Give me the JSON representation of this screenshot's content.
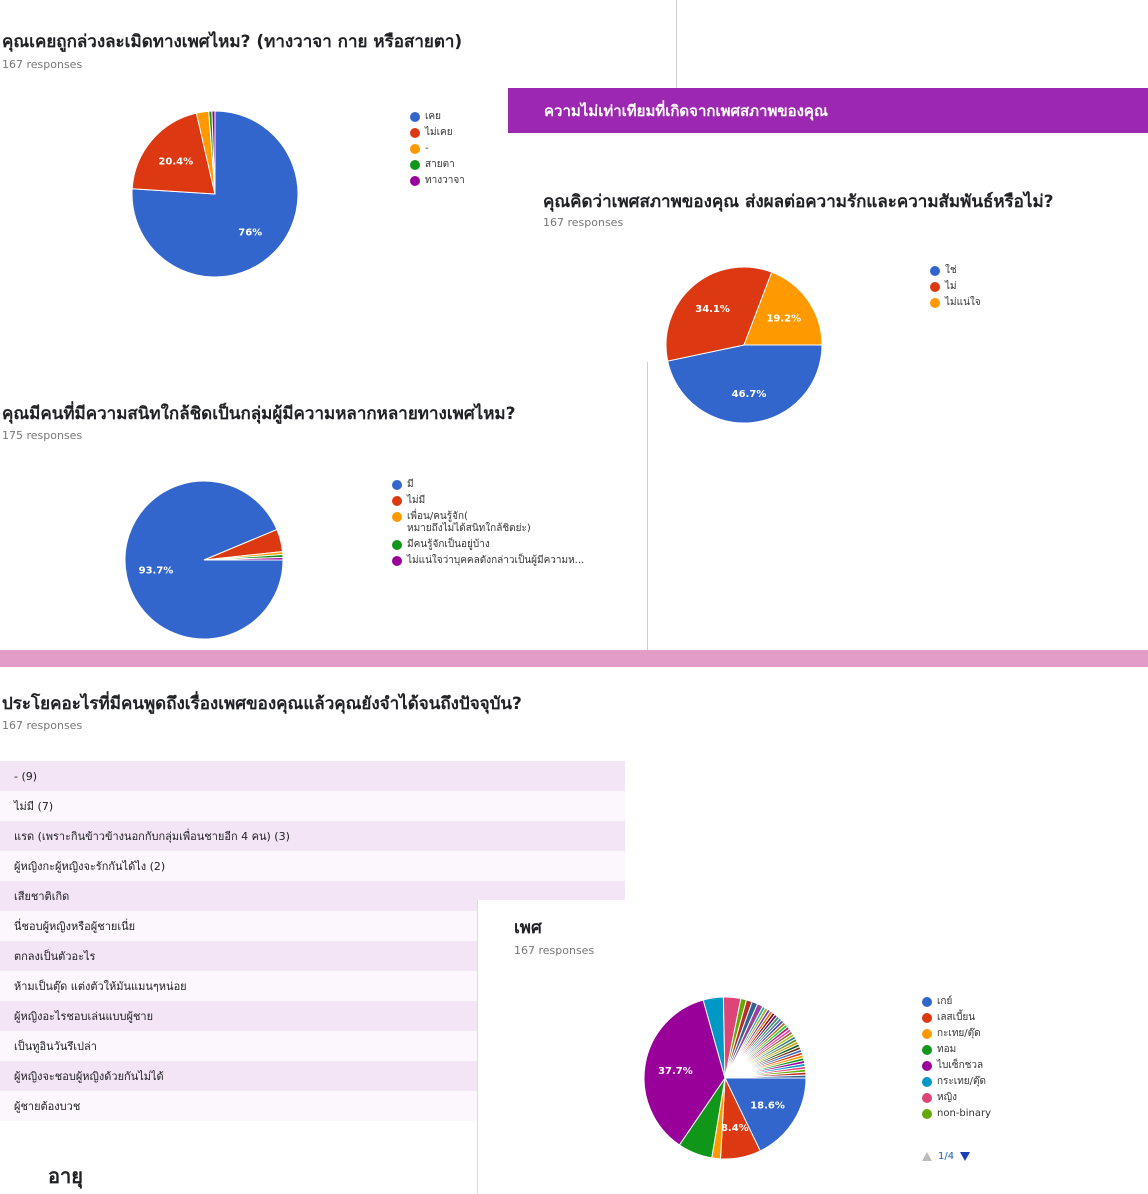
{
  "q1": {
    "title": "คุณเคยถูกล่วงละเมิดทางเพศไหม? (ทางวาจา กาย หรือสายตา)",
    "responses": "167 responses",
    "legend": [
      {
        "label": "เคย",
        "color": "#3366cc"
      },
      {
        "label": "ไม่เคย",
        "color": "#dc3912"
      },
      {
        "label": "-",
        "color": "#ff9900"
      },
      {
        "label": "สายตา",
        "color": "#109618"
      },
      {
        "label": "ทางวาจา",
        "color": "#990099"
      }
    ]
  },
  "section_band": {
    "title": "ความไม่เท่าเทียมที่เกิดจากเพศสภาพของคุณ"
  },
  "q2": {
    "title": "คุณคิดว่าเพศสภาพของคุณ ส่งผลต่อความรักและความสัมพันธ์หรือไม่?",
    "responses": "167 responses",
    "legend": [
      {
        "label": "ใช่",
        "color": "#3366cc"
      },
      {
        "label": "ไม่",
        "color": "#dc3912"
      },
      {
        "label": "ไม่แน่ใจ",
        "color": "#ff9900"
      }
    ]
  },
  "q3": {
    "title": "คุณมีคนที่มีความสนิทใกล้ชิดเป็นกลุ่มผู้มีความหลากหลายทางเพศไหม?",
    "responses": "175 responses",
    "legend": [
      {
        "label": "มี",
        "color": "#3366cc"
      },
      {
        "label": "ไม่มี",
        "color": "#dc3912"
      },
      {
        "label": "เพื่อน/คนรู้จัก(\nหมายถึงไม่ได้สนิทใกล้ชิดย่ะ)",
        "color": "#ff9900"
      },
      {
        "label": "มีคนรู้จักเป็นอยู่บ้าง",
        "color": "#109618"
      },
      {
        "label": "ไม่แน่ใจว่าบุคคลดังกล่าวเป็นผู้มีความห...",
        "color": "#990099"
      }
    ]
  },
  "q4": {
    "title": "ประโยคอะไรที่มีคนพูดถึงเรื่องเพศของคุณแล้วคุณยังจำได้จนถึงปัจจุบัน?",
    "responses": "167 responses",
    "rows": [
      "- (9)",
      "ไม่มี (7)",
      "แรด (เพราะกินข้าวข้างนอกกับกลุ่มเพื่อนชายอีก 4 คน) (3)",
      "ผู้หญิงกะผู้หญิงจะรักกันได้ไง (2)",
      "เสียชาติเกิด",
      "นี่ชอบผู้หญิงหรือผู้ชายเนี่ย",
      "ตกลงเป็นตัวอะไร",
      "ห้ามเป็นตุ๊ด แต่งตัวให้มันแมนๆหน่อย",
      "ผู้หญิงอะไรชอบเล่นแบบผู้ชาย",
      "เป็นทูอินวันรึเปล่า",
      "ผู้หญิงจะชอบผู้หญิงด้วยกันไม่ได้",
      "ผู้ชายต้องบวช"
    ]
  },
  "q5": {
    "title": "เพศ",
    "responses": "167 responses",
    "legend": [
      {
        "label": "เกย์",
        "color": "#3366cc"
      },
      {
        "label": "เลสเบี้ยน",
        "color": "#dc3912"
      },
      {
        "label": "กะเทย/ตุ๊ด",
        "color": "#ff9900"
      },
      {
        "label": "ทอม",
        "color": "#109618"
      },
      {
        "label": "ไบเซ็กชวล",
        "color": "#990099"
      },
      {
        "label": "กระเทย/ตุ๊ด",
        "color": "#0099c6"
      },
      {
        "label": "หญิง",
        "color": "#dd4477"
      },
      {
        "label": "non-binary",
        "color": "#66aa00"
      }
    ],
    "pager": "1/4"
  },
  "q6": {
    "title": "อายุ"
  },
  "chart_data": [
    {
      "type": "pie",
      "title": "คุณเคยถูกล่วงละเมิดทางเพศไหม? (ทางวาจา กาย หรือสายตา)",
      "labels": [
        "เคย",
        "ไม่เคย",
        "-",
        "สายตา",
        "ทางวาจา"
      ],
      "values": [
        76.0,
        20.4,
        2.4,
        0.6,
        0.6
      ],
      "colors": [
        "#3366cc",
        "#dc3912",
        "#ff9900",
        "#109618",
        "#990099"
      ],
      "data_labels": [
        "76%",
        "20.4%",
        "",
        "",
        ""
      ]
    },
    {
      "type": "pie",
      "title": "คุณคิดว่าเพศสภาพของคุณ ส่งผลต่อความรักและความสัมพันธ์หรือไม่?",
      "labels": [
        "ใช่",
        "ไม่",
        "ไม่แน่ใจ"
      ],
      "values": [
        46.7,
        34.1,
        19.2
      ],
      "colors": [
        "#3366cc",
        "#dc3912",
        "#ff9900"
      ],
      "data_labels": [
        "46.7%",
        "34.1%",
        "19.2%"
      ]
    },
    {
      "type": "pie",
      "title": "คุณมีคนที่มีความสนิทใกล้ชิดเป็นกลุ่มผู้มีความหลากหลายทางเพศไหม?",
      "labels": [
        "มี",
        "ไม่มี",
        "เพื่อน/คนรู้จัก(หมายถึงไม่ได้สนิทใกล้ชิดย่ะ)",
        "มีคนรู้จักเป็นอยู่บ้าง",
        "ไม่แน่ใจว่าบุคคลดังกล่าวเป็นผู้มีความห..."
      ],
      "values": [
        93.7,
        4.6,
        0.6,
        0.6,
        0.5
      ],
      "colors": [
        "#3366cc",
        "#dc3912",
        "#ff9900",
        "#109618",
        "#990099"
      ],
      "data_labels": [
        "93.7%",
        "",
        "",
        "",
        ""
      ]
    },
    {
      "type": "pie",
      "title": "เพศ",
      "labels": [
        "เกย์",
        "เลสเบี้ยน",
        "กะเทย/ตุ๊ด",
        "ทอม",
        "ไบเซ็กชวล",
        "กระเทย/ตุ๊ด",
        "หญิง",
        "non-binary"
      ],
      "values": [
        18.6,
        8.4,
        1.8,
        7.2,
        37.7,
        4.2,
        3.6,
        1.2
      ],
      "colors": [
        "#3366cc",
        "#dc3912",
        "#ff9900",
        "#109618",
        "#990099",
        "#0099c6",
        "#dd4477",
        "#66aa00"
      ],
      "data_labels": [
        "18.6%",
        "8.4%",
        "",
        "",
        "37.7%",
        "",
        "",
        ""
      ],
      "other_values": [
        1.2,
        1.2,
        1.2,
        0.6,
        0.6,
        0.6,
        0.6,
        0.6,
        0.6,
        0.6,
        0.6,
        0.6,
        0.6,
        0.6,
        0.6,
        0.6,
        0.6,
        0.6,
        0.6,
        0.6,
        0.6,
        0.6,
        0.6,
        0.6,
        0.6,
        0.6,
        0.6,
        0.6,
        0.6,
        0.6,
        0.6,
        0.6,
        0.6
      ],
      "other_colors": [
        "#b82e2e",
        "#316395",
        "#994499",
        "#22aa99",
        "#aaaa11",
        "#6633cc",
        "#e67300",
        "#8b0707",
        "#651067",
        "#329262",
        "#5574a6",
        "#3b3eac",
        "#b77322",
        "#16d620",
        "#b91383",
        "#f4359e",
        "#9c5935",
        "#a9c413",
        "#2a778d",
        "#668d1c",
        "#bea413",
        "#0c5922",
        "#743411",
        "#3366cc",
        "#dc3912",
        "#ff9900",
        "#109618",
        "#990099",
        "#0099c6",
        "#dd4477",
        "#66aa00",
        "#b82e2e",
        "#316395"
      ]
    }
  ]
}
